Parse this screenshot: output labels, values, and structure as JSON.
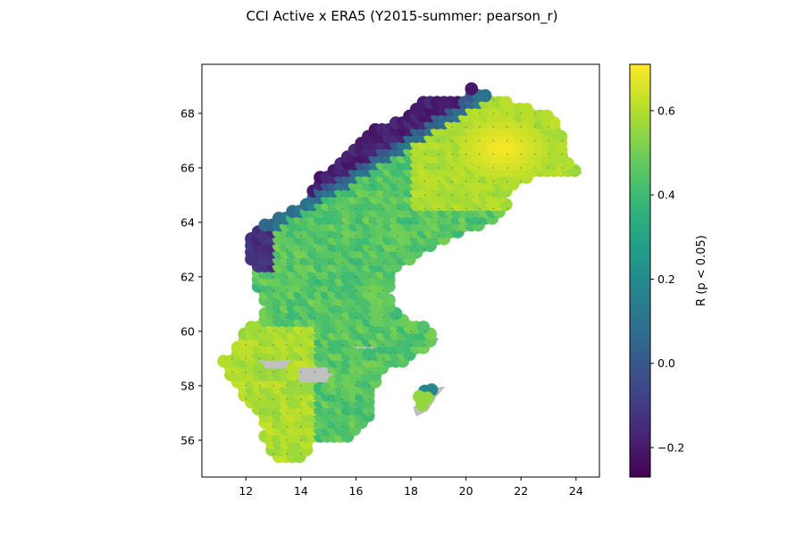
{
  "figure": {
    "title": "CCI Active x ERA5 (Y2015-summer: pearson_r)"
  },
  "chart_data": {
    "type": "scatter",
    "title": "CCI Active x ERA5 (Y2015-summer: pearson_r)",
    "xlabel": "",
    "ylabel": "",
    "xlim": [
      10.4,
      24.85
    ],
    "ylim": [
      54.65,
      69.8
    ],
    "x_ticks": [
      12,
      14,
      16,
      18,
      20,
      22,
      24
    ],
    "y_ticks": [
      56,
      58,
      60,
      62,
      64,
      66,
      68
    ],
    "colorbar": {
      "label": "R (p < 0.05)",
      "colormap": "viridis",
      "vmin": -0.27,
      "vmax": 0.71,
      "ticks": [
        -0.2,
        0.0,
        0.2,
        0.4,
        0.6
      ],
      "tick_labels": [
        "−0.2",
        "0.0",
        "0.2",
        "0.4",
        "0.6"
      ]
    },
    "grid": false,
    "background_land_color": "#c0c0c0",
    "marker_size_deg": 0.25,
    "grid_step_deg": 0.25,
    "land_outline": [
      [
        13.0,
        55.35
      ],
      [
        14.2,
        55.4
      ],
      [
        14.4,
        56.0
      ],
      [
        15.8,
        56.1
      ],
      [
        16.4,
        56.6
      ],
      [
        16.6,
        57.3
      ],
      [
        16.7,
        58.0
      ],
      [
        16.9,
        58.6
      ],
      [
        17.8,
        58.9
      ],
      [
        18.4,
        59.3
      ],
      [
        19.0,
        59.7
      ],
      [
        18.6,
        60.1
      ],
      [
        17.5,
        60.6
      ],
      [
        17.2,
        61.4
      ],
      [
        17.4,
        62.3
      ],
      [
        18.0,
        62.6
      ],
      [
        18.7,
        63.1
      ],
      [
        19.5,
        63.5
      ],
      [
        20.4,
        63.8
      ],
      [
        21.2,
        64.2
      ],
      [
        21.6,
        64.6
      ],
      [
        21.4,
        65.0
      ],
      [
        22.2,
        65.6
      ],
      [
        22.8,
        65.8
      ],
      [
        24.2,
        65.8
      ],
      [
        23.7,
        66.4
      ],
      [
        23.6,
        67.0
      ],
      [
        23.4,
        67.5
      ],
      [
        23.2,
        67.9
      ],
      [
        21.9,
        68.3
      ],
      [
        21.0,
        68.6
      ],
      [
        20.1,
        69.0
      ],
      [
        20.0,
        68.5
      ],
      [
        18.3,
        68.4
      ],
      [
        17.8,
        67.9
      ],
      [
        16.7,
        67.4
      ],
      [
        16.2,
        66.9
      ],
      [
        15.4,
        66.2
      ],
      [
        14.5,
        65.5
      ],
      [
        14.3,
        64.9
      ],
      [
        13.7,
        64.4
      ],
      [
        12.7,
        64.0
      ],
      [
        12.1,
        63.3
      ],
      [
        12.2,
        62.5
      ],
      [
        12.4,
        61.5
      ],
      [
        12.8,
        61.0
      ],
      [
        12.5,
        60.4
      ],
      [
        11.9,
        59.9
      ],
      [
        11.6,
        59.2
      ],
      [
        11.1,
        58.9
      ],
      [
        11.6,
        58.1
      ],
      [
        11.9,
        57.6
      ],
      [
        12.5,
        56.9
      ],
      [
        12.8,
        56.5
      ],
      [
        12.6,
        56.1
      ],
      [
        13.0,
        55.35
      ]
    ],
    "gotland_outline": [
      [
        18.1,
        57.2
      ],
      [
        18.5,
        57.5
      ],
      [
        18.8,
        57.9
      ],
      [
        19.2,
        57.95
      ],
      [
        18.9,
        57.6
      ],
      [
        18.6,
        57.1
      ],
      [
        18.2,
        56.9
      ],
      [
        18.1,
        57.2
      ]
    ],
    "points_sample": [
      {
        "x": 21.5,
        "y": 66.8,
        "r": 0.7
      },
      {
        "x": 19.0,
        "y": 68.2,
        "r": -0.24
      },
      {
        "x": 12.6,
        "y": 63.0,
        "r": -0.2
      },
      {
        "x": 15.5,
        "y": 62.5,
        "r": 0.45
      },
      {
        "x": 13.5,
        "y": 59.0,
        "r": 0.62
      },
      {
        "x": 14.0,
        "y": 56.5,
        "r": 0.48
      },
      {
        "x": 18.8,
        "y": 57.9,
        "r": 0.18
      },
      {
        "x": 15.5,
        "y": 65.5,
        "r": -0.15
      }
    ]
  }
}
